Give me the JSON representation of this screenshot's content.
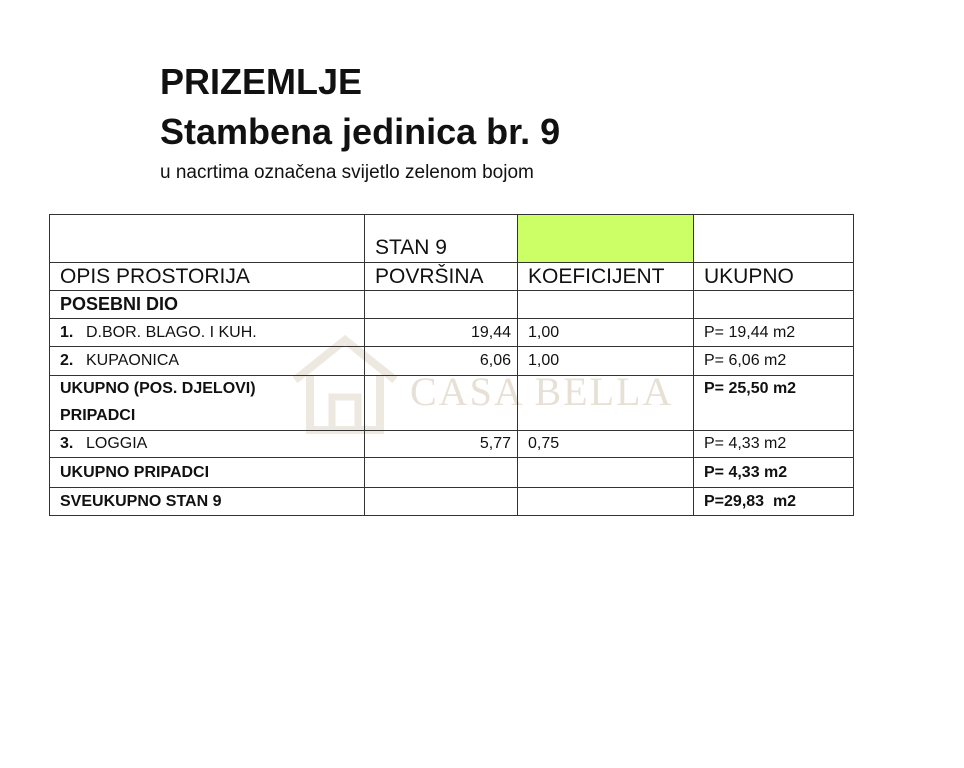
{
  "title": "PRIZEMLJE",
  "subtitle": "Stambena jedinica br. 9",
  "note": "u nacrtima označena svijetlo zelenom bojom",
  "watermark": "CASA BELLA",
  "colors": {
    "unit_marker": "#ccff66"
  },
  "table": {
    "unit_label": "STAN 9",
    "headers": [
      "OPIS PROSTORIJA",
      "POVRŠINA",
      "KOEFICIJENT",
      "UKUPNO"
    ],
    "section_private": "POSEBNI DIO",
    "rows": [
      {
        "no": "1.",
        "name": "D.BOR. BLAGO. I KUH.",
        "area": "19,44",
        "coef": "1,00",
        "total": "P= 19,44 m2"
      },
      {
        "no": "2.",
        "name": "KUPAONICA",
        "area": "6,06",
        "coef": "1,00",
        "total": "P= 6,06 m2"
      }
    ],
    "subtotal_private_label": "UKUPNO (POS. DJELOVI)",
    "subtotal_private_value": "P= 25,50 m2",
    "section_appurtenances": "PRIPADCI",
    "rows2": [
      {
        "no": "3.",
        "name": "LOGGIA",
        "area": "5,77",
        "coef": "0,75",
        "total": "P= 4,33 m2"
      }
    ],
    "subtotal_appurtenances_label": "UKUPNO PRIPADCI",
    "subtotal_appurtenances_value": "P= 4,33 m2",
    "grand_total_label": "SVEUKUPNO STAN 9",
    "grand_total_value": "P=29,83  m2"
  }
}
